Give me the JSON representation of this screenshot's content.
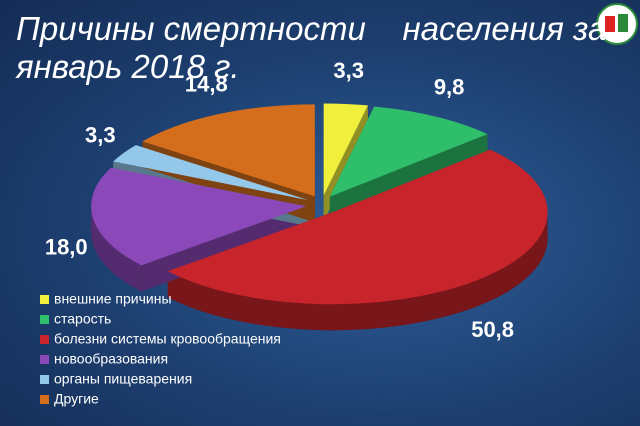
{
  "chart_data": {
    "type": "pie",
    "title": [
      "Причины смертности    населения за",
      "январь 2018 г."
    ],
    "categories": [
      "внешние причины",
      "старость",
      "болезни системы кровообращения",
      "новообразования",
      "органы пищеварения",
      "Другие"
    ],
    "values": [
      3.3,
      9.8,
      50.8,
      18.0,
      3.3,
      14.8
    ],
    "value_labels": [
      "3,3",
      "9,8",
      "50,8",
      "18,0",
      "3,3",
      "14,8"
    ],
    "colors": [
      "#f0f03c",
      "#2fbf6a",
      "#c8242c",
      "#8a48b8",
      "#94c8ea",
      "#d46e1c"
    ],
    "legend": "lower left"
  }
}
